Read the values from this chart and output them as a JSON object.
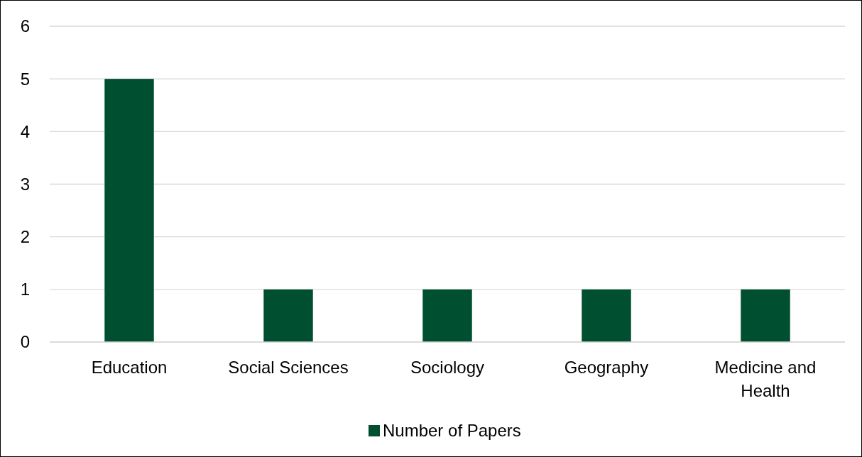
{
  "chart_data": {
    "type": "bar",
    "categories": [
      "Education",
      "Social Sciences",
      "Sociology",
      "Geography",
      "Medicine and Health"
    ],
    "series": [
      {
        "name": "Number of Papers",
        "color": "#004f30",
        "values": [
          5,
          1,
          1,
          1,
          1
        ]
      }
    ],
    "ylim": [
      0,
      6
    ],
    "yticks": [
      0,
      1,
      2,
      3,
      4,
      5,
      6
    ],
    "grid": "y",
    "legend": "bottom"
  }
}
